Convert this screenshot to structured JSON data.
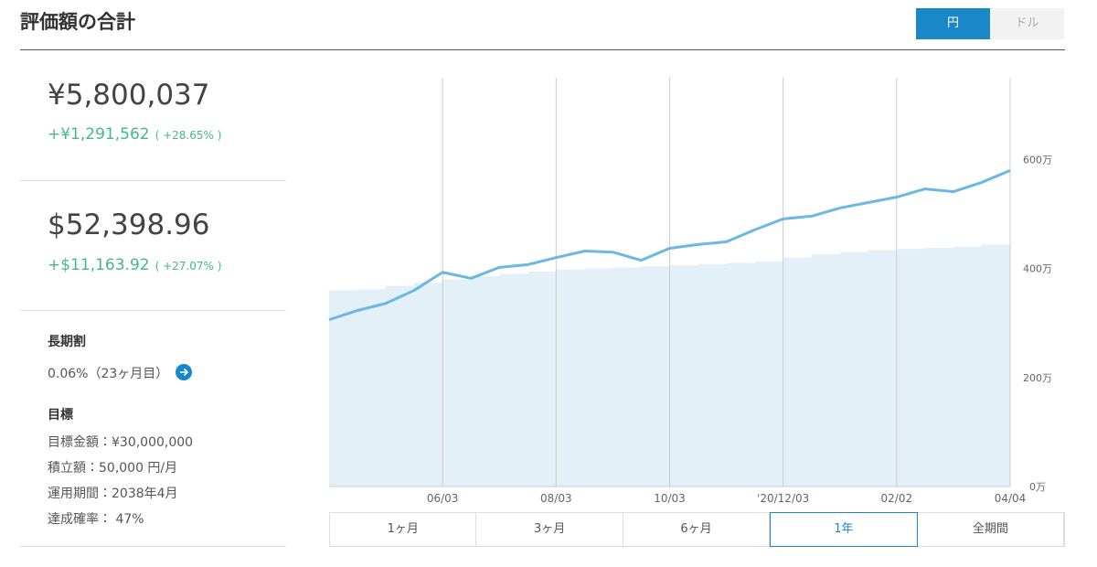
{
  "header": {
    "title": "評価額の合計",
    "currency_toggle": [
      "円",
      "ドル"
    ],
    "selected_currency": "円"
  },
  "summary": {
    "jpy": {
      "value": "¥5,800,037",
      "gain": "+¥1,291,562",
      "gain_pct": "( +28.65% )"
    },
    "usd": {
      "value": "$52,398.96",
      "gain": "+$11,163.92",
      "gain_pct": "( +27.07% )"
    }
  },
  "long_term_discount": {
    "title": "長期割",
    "text": "0.06%（23ヶ月目）"
  },
  "goal": {
    "title": "目標",
    "lines": [
      "目標金額：¥30,000,000",
      "積立額：50,000 円/月",
      "運用期間：2038年4月",
      "達成確率： 47%"
    ]
  },
  "chart_data": {
    "type": "line",
    "categories": [
      null,
      null,
      null,
      null,
      "06/03",
      null,
      null,
      null,
      "08/03",
      null,
      null,
      null,
      "10/03",
      null,
      null,
      null,
      "'20/12/03",
      null,
      null,
      null,
      "02/02",
      null,
      null,
      null,
      "04/04"
    ],
    "series": [
      {
        "color": "#6bb8e0",
        "values": [
          3060000,
          3230000,
          3360000,
          3600000,
          3930000,
          3820000,
          4020000,
          4070000,
          4200000,
          4320000,
          4300000,
          4150000,
          4370000,
          4440000,
          4490000,
          4710000,
          4910000,
          4960000,
          5110000,
          5210000,
          5310000,
          5460000,
          5410000,
          5580000,
          5800000
        ]
      },
      {
        "color": "#e3f0f8",
        "fill": true,
        "values": [
          3600000,
          3620000,
          3680000,
          3740000,
          3800000,
          3860000,
          3900000,
          3940000,
          3980000,
          4000000,
          4020000,
          4040000,
          4060000,
          4080000,
          4100000,
          4130000,
          4200000,
          4260000,
          4300000,
          4340000,
          4360000,
          4380000,
          4400000,
          4440000,
          4510000
        ]
      }
    ],
    "ylim": [
      0,
      7500000
    ],
    "yticks": [
      {
        "value": 0,
        "label": "0万"
      },
      {
        "value": 2000000,
        "label": "200万"
      },
      {
        "value": 4000000,
        "label": "400万"
      },
      {
        "value": 6000000,
        "label": "600万"
      }
    ],
    "grid": "x"
  },
  "period_buttons": [
    "1ヶ月",
    "3ヶ月",
    "6ヶ月",
    "1年",
    "全期間"
  ],
  "selected_period": "1年"
}
